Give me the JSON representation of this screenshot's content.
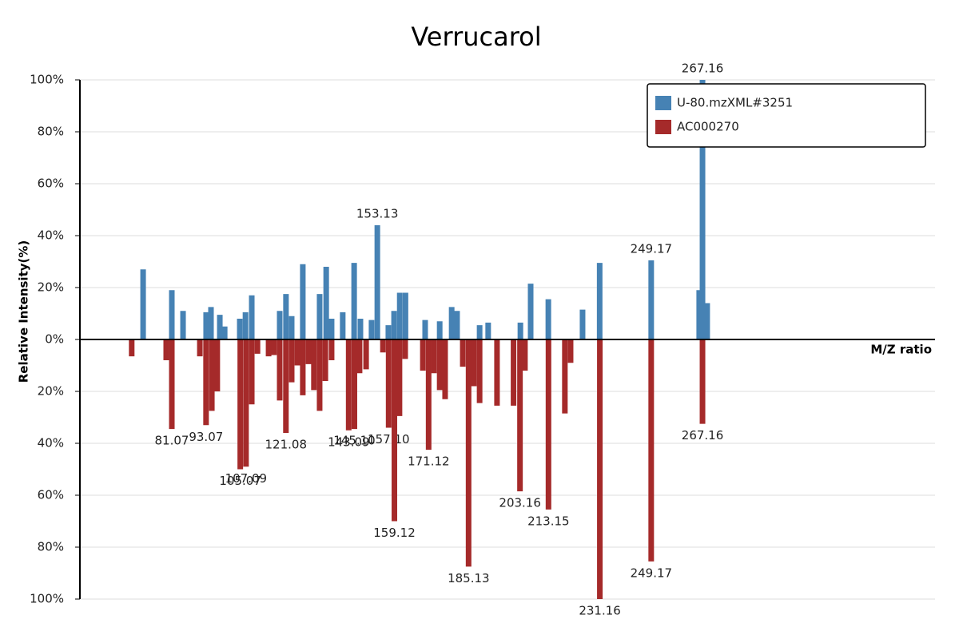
{
  "chart_data": {
    "type": "mirror-bar",
    "title": "Verrucarol",
    "y_label": "Relative Intensity(%)",
    "x_label": "M/Z ratio",
    "xlim": [
      48.84,
      348.7
    ],
    "ylim": [
      -100,
      100
    ],
    "yticks": [
      {
        "value": -100,
        "label": "100%"
      },
      {
        "value": -80,
        "label": "80%"
      },
      {
        "value": -60,
        "label": "60%"
      },
      {
        "value": -40,
        "label": "40%"
      },
      {
        "value": -20,
        "label": "20%"
      },
      {
        "value": 0,
        "label": "0%"
      },
      {
        "value": 20,
        "label": "20%"
      },
      {
        "value": 40,
        "label": "40%"
      },
      {
        "value": 60,
        "label": "60%"
      },
      {
        "value": 80,
        "label": "80%"
      },
      {
        "value": 100,
        "label": "100%"
      }
    ],
    "grid": true,
    "legend": "upper right",
    "series": [
      {
        "name": "U-80.mzXML#3251",
        "color": "#4682b4",
        "x": [
          71.0,
          81.07,
          85.0,
          93.1,
          94.8,
          97.9,
          99.6,
          104.9,
          106.9,
          109.1,
          118.9,
          121.1,
          123.1,
          127.0,
          132.9,
          135.2,
          137.1,
          141.0,
          145.0,
          147.2,
          151.1,
          153.13,
          157.0,
          159.0,
          161.0,
          163.0,
          169.9,
          175.0,
          179.2,
          181.1,
          189.0,
          192.0,
          203.3,
          206.9,
          213.1,
          225.1,
          231.1,
          249.17,
          266.0,
          267.16,
          268.8
        ],
        "values": [
          27,
          19,
          11,
          10.5,
          12.5,
          9.5,
          5,
          8,
          10.5,
          17,
          11,
          17.5,
          9,
          29,
          17.5,
          28,
          8,
          10.5,
          29.5,
          8,
          7.5,
          44,
          5.5,
          11,
          18,
          18,
          7.5,
          7,
          12.5,
          11,
          5.5,
          6.5,
          6.5,
          21.5,
          15.5,
          11.5,
          29.5,
          30.5,
          19,
          100,
          14
        ],
        "x_labels": [
          null,
          null,
          null,
          null,
          null,
          null,
          null,
          null,
          null,
          null,
          null,
          null,
          null,
          null,
          null,
          null,
          null,
          null,
          null,
          null,
          null,
          "153.13",
          null,
          null,
          null,
          null,
          null,
          null,
          null,
          null,
          null,
          null,
          null,
          null,
          null,
          null,
          null,
          "249.17",
          null,
          "267.16",
          null
        ]
      },
      {
        "name": "AC000270",
        "color": "#a52a2a",
        "x": [
          67.0,
          79.1,
          81.07,
          90.9,
          93.07,
          95.1,
          97.0,
          105.07,
          107.09,
          109.1,
          111.1,
          115.0,
          116.9,
          118.9,
          121.08,
          123.1,
          125.1,
          127.0,
          129.0,
          130.9,
          132.9,
          134.9,
          137.1,
          143.09,
          145.1,
          146.9,
          149.2,
          155.1,
          157.1,
          159.12,
          160.9,
          162.9,
          169.1,
          171.12,
          173.0,
          175.0,
          176.9,
          183.1,
          185.13,
          187.0,
          189.0,
          195.1,
          200.9,
          203.16,
          204.9,
          213.15,
          218.9,
          220.9,
          231.16,
          249.17,
          267.16
        ],
        "values": [
          -6.5,
          -8,
          -34.5,
          -6.5,
          -33,
          -27.5,
          -20,
          -50,
          -49,
          -25,
          -5.5,
          -6.5,
          -6,
          -23.5,
          -36,
          -16.5,
          -10,
          -21.5,
          -9.5,
          -19.5,
          -27.5,
          -16,
          -8,
          -35,
          -34.5,
          -13,
          -11.5,
          -5,
          -34,
          -70,
          -29.5,
          -7.5,
          -12,
          -42.5,
          -13,
          -19.5,
          -23,
          -10.5,
          -87.5,
          -18,
          -24.5,
          -25.5,
          -25.5,
          -58.5,
          -12,
          -65.5,
          -28.5,
          -9,
          -100,
          -85.5,
          -32.5
        ],
        "x_labels": [
          null,
          null,
          "81.07",
          null,
          "93.07",
          null,
          null,
          "105.07",
          "107.09",
          null,
          null,
          null,
          null,
          null,
          "121.08",
          null,
          null,
          null,
          null,
          null,
          null,
          null,
          null,
          "143.09",
          "145.10",
          null,
          null,
          null,
          "157.10",
          "159.12",
          null,
          null,
          null,
          "171.12",
          null,
          null,
          null,
          null,
          "185.13",
          null,
          null,
          null,
          null,
          "203.16",
          null,
          "213.15",
          null,
          null,
          "231.16",
          "249.17",
          "267.16"
        ]
      }
    ]
  }
}
